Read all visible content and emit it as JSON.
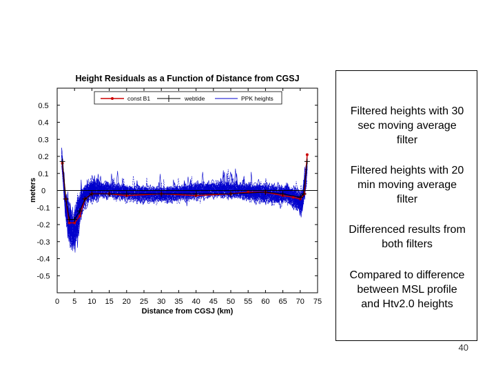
{
  "chart_data": {
    "type": "line",
    "title": "Height Residuals as a Function of Distance from CGSJ",
    "xlabel": "Distance from CGSJ (km)",
    "ylabel": "meters",
    "xlim": [
      0,
      75
    ],
    "ylim": [
      -0.6,
      0.6
    ],
    "x_ticks": [
      0,
      5,
      10,
      15,
      20,
      25,
      30,
      35,
      40,
      45,
      50,
      55,
      60,
      65,
      70,
      75
    ],
    "y_ticks": [
      0.5,
      0.4,
      0.3,
      0.2,
      0.1,
      0,
      -0.1,
      -0.2,
      -0.3,
      -0.4,
      -0.5
    ],
    "y_tick_labels": [
      "0.5",
      "0.4",
      "0.3",
      "0.2",
      "0.1",
      "0",
      "-0.1",
      "-0.2",
      "-0.3",
      "-0.4",
      "-0.5"
    ],
    "grid": false,
    "legend_position": "top",
    "series": [
      {
        "name": "const B1",
        "color": "#cc0000",
        "marker": "dot",
        "x": [
          1.5,
          2.5,
          3.5,
          5,
          6.5,
          8,
          10,
          15,
          20,
          30,
          40,
          50,
          55,
          60,
          65,
          68,
          70,
          71.2,
          72
        ],
        "y": [
          0.16,
          -0.05,
          -0.19,
          -0.19,
          -0.15,
          -0.05,
          -0.02,
          -0.02,
          -0.03,
          -0.02,
          -0.03,
          -0.02,
          -0.01,
          -0.01,
          -0.03,
          -0.04,
          -0.05,
          -0.02,
          0.21
        ]
      },
      {
        "name": "webtide",
        "color": "#000000",
        "marker": "plus",
        "x": [
          1.5,
          2.5,
          3.5,
          5,
          6.5,
          8,
          10,
          15,
          20,
          30,
          40,
          50,
          60,
          65,
          70,
          71,
          72
        ],
        "y": [
          0.17,
          -0.05,
          -0.17,
          -0.17,
          -0.12,
          -0.05,
          -0.02,
          -0.02,
          -0.02,
          -0.02,
          -0.02,
          -0.02,
          -0.01,
          -0.02,
          -0.04,
          -0.02,
          0.17
        ]
      },
      {
        "name": "PPK heights",
        "color": "#0000cc",
        "marker": "none",
        "spread": "approximately 40 noisy traces, roughly -0.1 to 0.15 across the profile, dipping to -0.45 near 4 km"
      }
    ]
  },
  "notes": [
    {
      "lines": [
        "Filtered heights with 30",
        "sec moving average",
        "filter"
      ]
    },
    {
      "lines": [
        "Filtered heights with 20",
        "min moving average",
        "filter"
      ]
    },
    {
      "lines": [
        "Differenced results from",
        "both filters"
      ]
    },
    {
      "lines": [
        "Compared to difference",
        "between MSL profile",
        "and Htv2.0 heights"
      ]
    }
  ],
  "page_number": "40"
}
